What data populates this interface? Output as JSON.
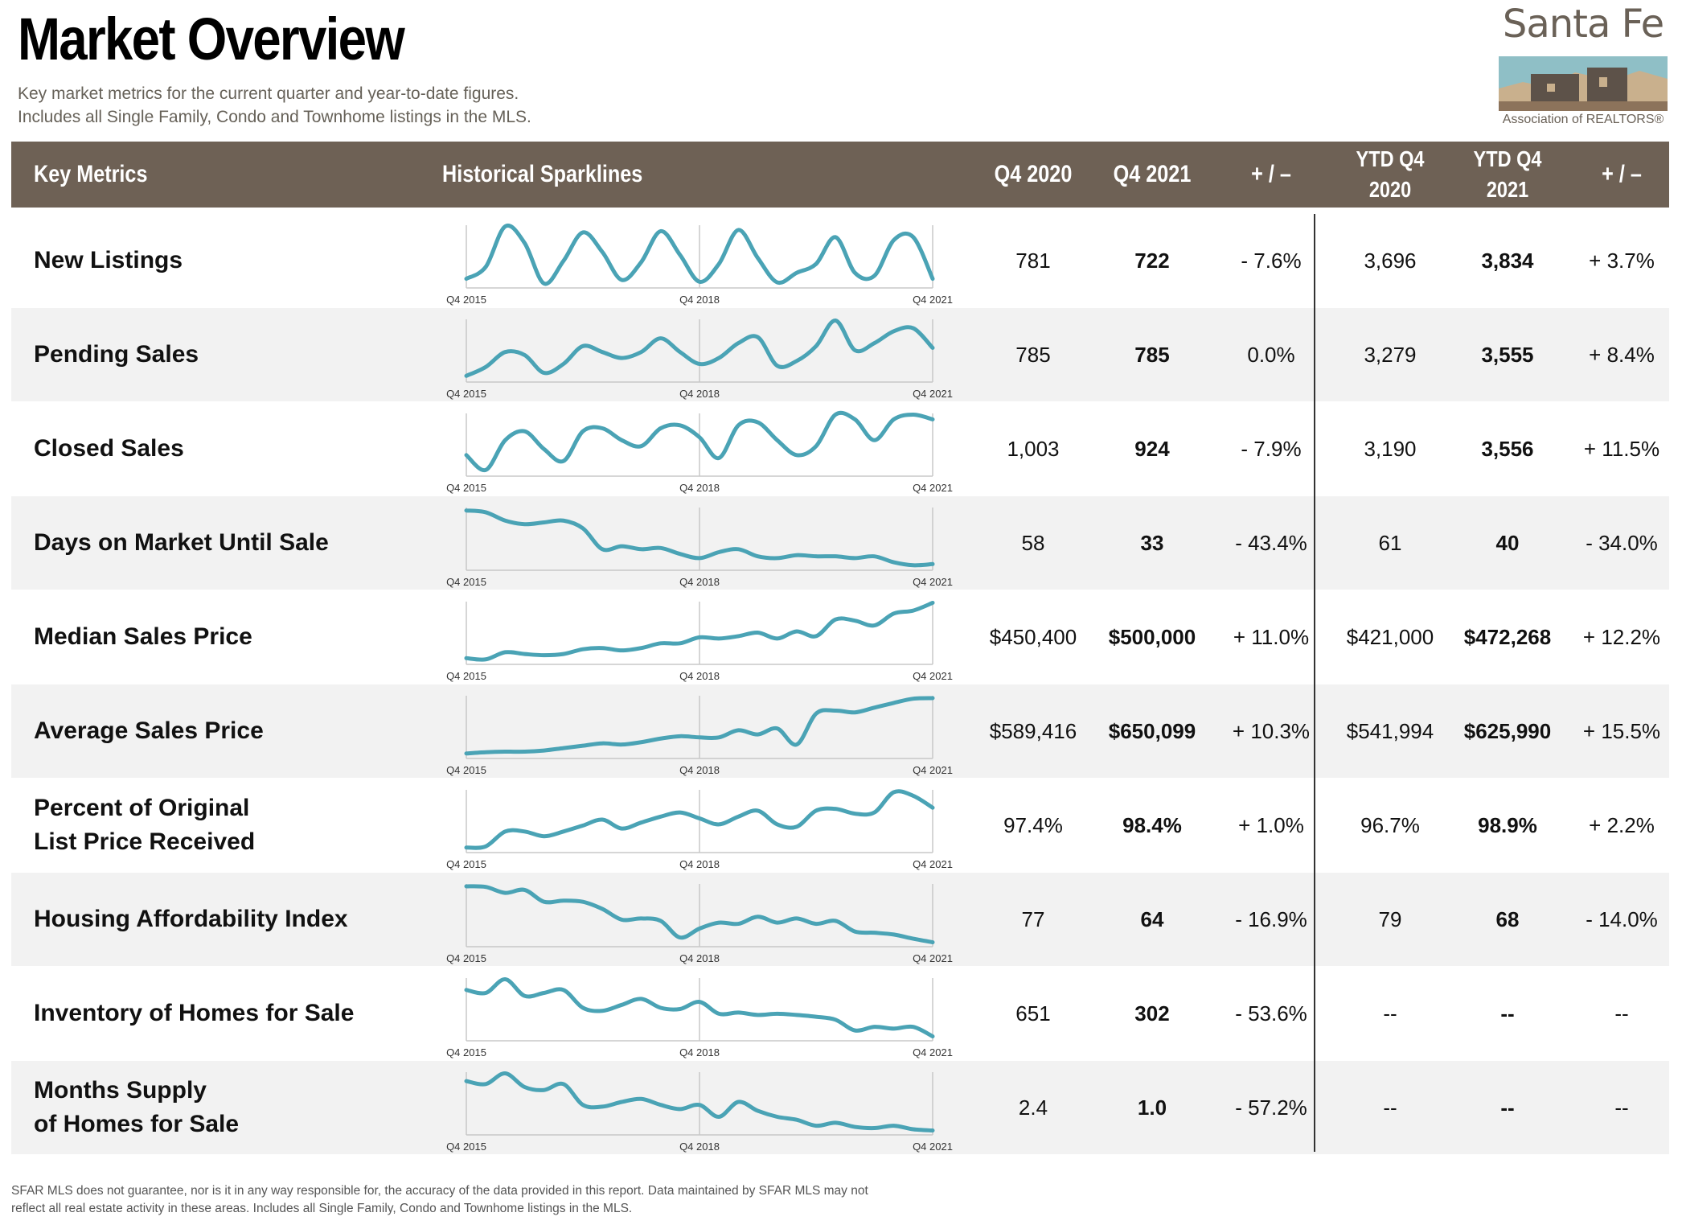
{
  "header": {
    "title": "Market Overview",
    "subtitle_1": "Key market metrics for the current quarter and year-to-date figures.",
    "subtitle_2": "Includes all Single Family, Condo and Townhome listings in the MLS."
  },
  "logo": {
    "name": "Santa Fe",
    "sub": "Association of REALTORS®"
  },
  "columns": {
    "key_metrics": "Key Metrics",
    "sparklines": "Historical Sparklines",
    "q4_2020": "Q4 2020",
    "q4_2021": "Q4 2021",
    "change": "+ / –",
    "ytd_2020": [
      "YTD Q4",
      "2020"
    ],
    "ytd_2021": [
      "YTD Q4",
      "2021"
    ],
    "ytd_change": "+ / –"
  },
  "sparkline_labels": [
    "Q4 2015",
    "Q4 2018",
    "Q4 2021"
  ],
  "colors": {
    "header_bg": "#6e6155",
    "line": "#4aa3b5",
    "row_shade": "#f2f2f2"
  },
  "rows": [
    {
      "metric": "New Listings",
      "q4_2020": "781",
      "q4_2021": "722",
      "change": "- 7.6%",
      "ytd_2020": "3,696",
      "ytd_2021": "3,834",
      "ytd_change": "+ 3.7%",
      "spark": [
        0.1,
        0.3,
        0.98,
        0.7,
        0.02,
        0.4,
        0.88,
        0.55,
        0.08,
        0.38,
        0.9,
        0.5,
        0.05,
        0.35,
        0.92,
        0.45,
        0.04,
        0.2,
        0.35,
        0.8,
        0.2,
        0.15,
        0.75,
        0.8,
        0.1
      ]
    },
    {
      "metric": "Pending Sales",
      "q4_2020": "785",
      "q4_2021": "785",
      "change": "0.0%",
      "ytd_2020": "3,279",
      "ytd_2021": "3,555",
      "ytd_change": "+ 8.4%",
      "spark": [
        0.05,
        0.2,
        0.45,
        0.4,
        0.1,
        0.25,
        0.55,
        0.45,
        0.35,
        0.45,
        0.68,
        0.45,
        0.25,
        0.35,
        0.6,
        0.7,
        0.22,
        0.3,
        0.55,
        0.98,
        0.48,
        0.6,
        0.8,
        0.85,
        0.52
      ]
    },
    {
      "metric": "Closed Sales",
      "q4_2020": "1,003",
      "q4_2021": "924",
      "change": "- 7.9%",
      "ytd_2020": "3,190",
      "ytd_2021": "3,556",
      "ytd_change": "+ 11.5%",
      "spark": [
        0.3,
        0.05,
        0.55,
        0.7,
        0.4,
        0.2,
        0.7,
        0.75,
        0.55,
        0.45,
        0.75,
        0.8,
        0.6,
        0.25,
        0.8,
        0.85,
        0.55,
        0.3,
        0.45,
        0.98,
        0.9,
        0.55,
        0.9,
        0.98,
        0.9
      ]
    },
    {
      "metric": "Days on Market Until Sale",
      "q4_2020": "58",
      "q4_2021": "33",
      "change": "- 43.4%",
      "ytd_2020": "61",
      "ytd_2021": "40",
      "ytd_change": "- 34.0%",
      "spark": [
        0.95,
        0.92,
        0.78,
        0.72,
        0.75,
        0.78,
        0.65,
        0.3,
        0.35,
        0.3,
        0.32,
        0.22,
        0.15,
        0.25,
        0.3,
        0.18,
        0.15,
        0.2,
        0.18,
        0.18,
        0.15,
        0.18,
        0.08,
        0.03,
        0.05
      ]
    },
    {
      "metric": "Median Sales Price",
      "q4_2020": "$450,400",
      "q4_2021": "$500,000",
      "change": "+ 11.0%",
      "ytd_2020": "$421,000",
      "ytd_2021": "$472,268",
      "ytd_change": "+ 12.2%",
      "spark": [
        0.05,
        0.03,
        0.15,
        0.12,
        0.1,
        0.12,
        0.2,
        0.22,
        0.18,
        0.22,
        0.3,
        0.3,
        0.4,
        0.38,
        0.42,
        0.48,
        0.38,
        0.5,
        0.42,
        0.7,
        0.68,
        0.6,
        0.8,
        0.85,
        0.98
      ]
    },
    {
      "metric": "Average Sales Price",
      "q4_2020": "$589,416",
      "q4_2021": "$650,099",
      "change": "+ 10.3%",
      "ytd_2020": "$541,994",
      "ytd_2021": "$625,990",
      "ytd_change": "+ 15.5%",
      "spark": [
        0.03,
        0.05,
        0.06,
        0.06,
        0.08,
        0.12,
        0.16,
        0.2,
        0.18,
        0.22,
        0.28,
        0.32,
        0.3,
        0.3,
        0.42,
        0.35,
        0.45,
        0.18,
        0.7,
        0.75,
        0.72,
        0.8,
        0.88,
        0.95,
        0.96
      ]
    },
    {
      "metric": "Percent of Original\nList Price Received",
      "q4_2020": "97.4%",
      "q4_2021": "98.4%",
      "change": "+ 1.0%",
      "ytd_2020": "96.7%",
      "ytd_2021": "98.9%",
      "ytd_change": "+ 2.2%",
      "spark": [
        0.03,
        0.05,
        0.3,
        0.3,
        0.22,
        0.3,
        0.4,
        0.5,
        0.35,
        0.45,
        0.55,
        0.62,
        0.52,
        0.42,
        0.55,
        0.65,
        0.42,
        0.38,
        0.65,
        0.68,
        0.6,
        0.62,
        0.96,
        0.9,
        0.7
      ]
    },
    {
      "metric": "Housing Affordability Index",
      "q4_2020": "77",
      "q4_2021": "64",
      "change": "- 16.9%",
      "ytd_2020": "79",
      "ytd_2021": "68",
      "ytd_change": "- 14.0%",
      "spark": [
        0.96,
        0.95,
        0.85,
        0.9,
        0.7,
        0.72,
        0.7,
        0.58,
        0.4,
        0.42,
        0.38,
        0.1,
        0.25,
        0.35,
        0.33,
        0.45,
        0.35,
        0.42,
        0.33,
        0.38,
        0.2,
        0.18,
        0.15,
        0.08,
        0.02
      ]
    },
    {
      "metric": "Inventory of Homes for Sale",
      "q4_2020": "651",
      "q4_2021": "302",
      "change": "- 53.6%",
      "ytd_2020": "--",
      "ytd_2021": "--",
      "ytd_change": "--",
      "spark": [
        0.8,
        0.75,
        0.98,
        0.7,
        0.75,
        0.8,
        0.5,
        0.45,
        0.55,
        0.65,
        0.5,
        0.48,
        0.6,
        0.4,
        0.42,
        0.38,
        0.4,
        0.38,
        0.35,
        0.3,
        0.12,
        0.18,
        0.15,
        0.18,
        0.02
      ]
    },
    {
      "metric": "Months Supply\nof Homes for Sale",
      "q4_2020": "2.4",
      "q4_2021": "1.0",
      "change": "- 57.2%",
      "ytd_2020": "--",
      "ytd_2021": "--",
      "ytd_change": "--",
      "spark": [
        0.85,
        0.8,
        0.98,
        0.75,
        0.7,
        0.8,
        0.45,
        0.42,
        0.5,
        0.55,
        0.45,
        0.38,
        0.45,
        0.25,
        0.5,
        0.35,
        0.25,
        0.2,
        0.1,
        0.15,
        0.08,
        0.06,
        0.1,
        0.04,
        0.02
      ]
    }
  ],
  "disclaimer": "SFAR MLS does not guarantee, nor is it in any way responsible for, the accuracy of the data provided in this report. Data maintained by SFAR MLS may not reflect all real estate activity in these areas. Includes all Single Family, Condo and Townhome listings in the MLS."
}
